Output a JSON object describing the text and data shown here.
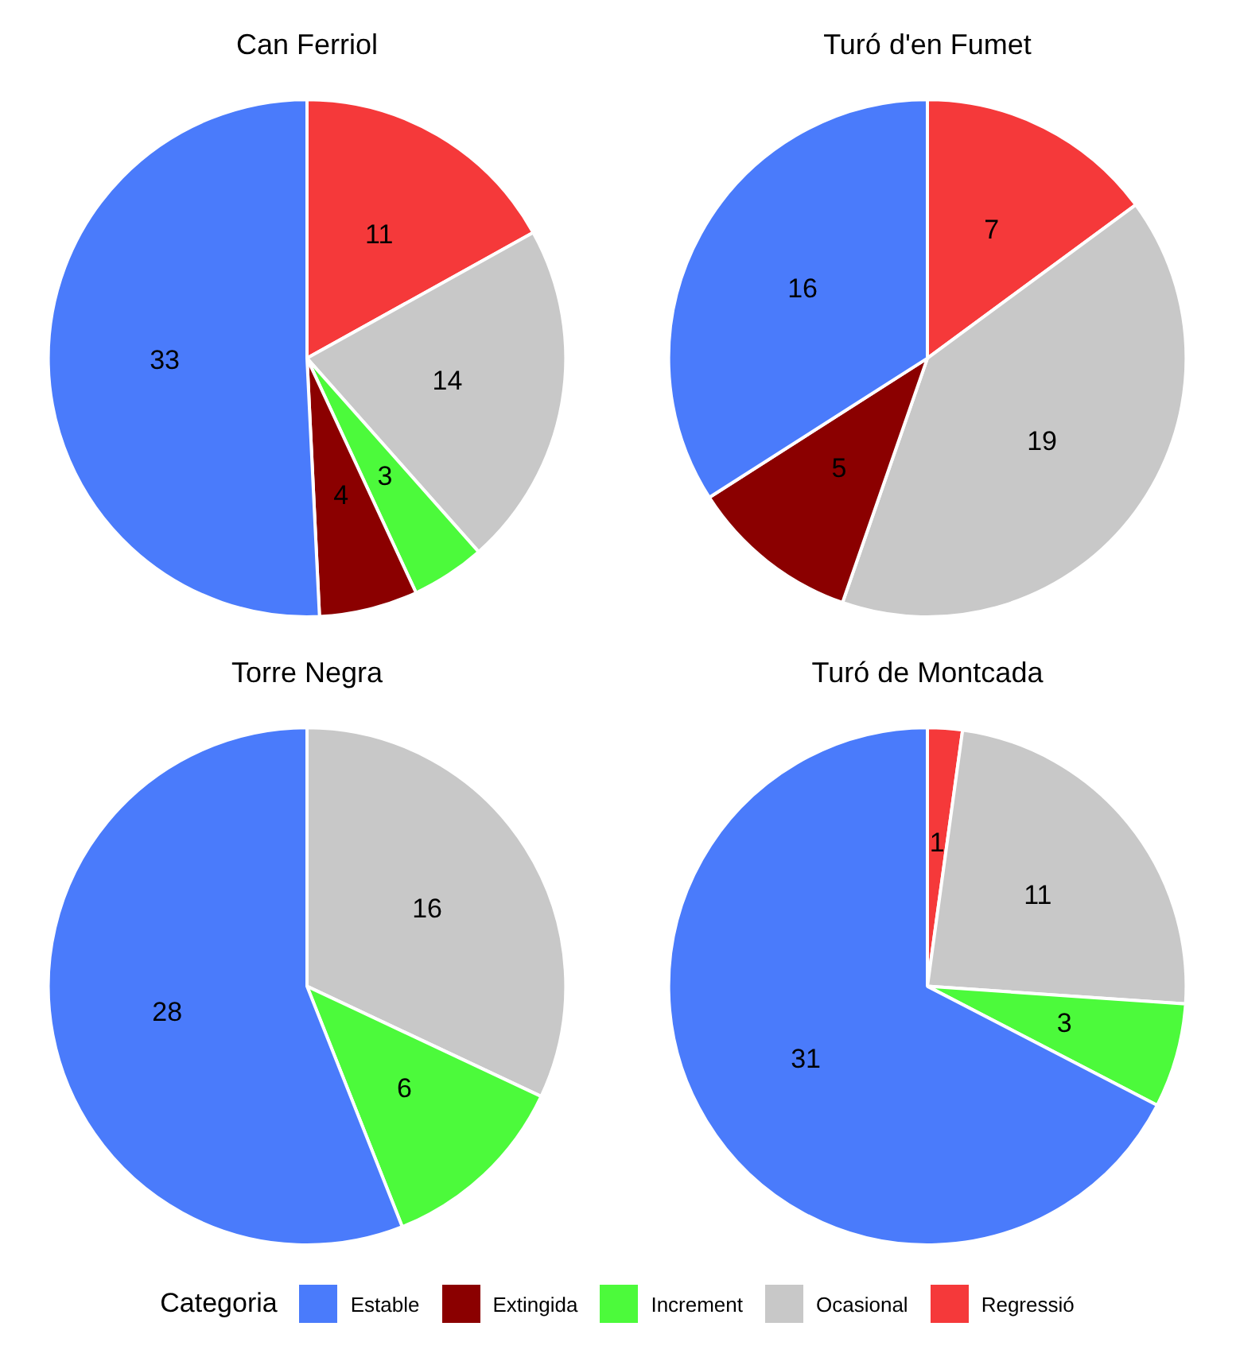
{
  "chart_data": [
    {
      "type": "pie",
      "title": "Can Ferriol",
      "categories": [
        "Regressió",
        "Ocasional",
        "Increment",
        "Extingida",
        "Estable"
      ],
      "values": [
        11,
        14,
        3,
        4,
        33
      ],
      "colors": [
        "#f5393a",
        "#c8c8c8",
        "#4cfa3b",
        "#8b0000",
        "#4a7bfb"
      ],
      "data_labels": true,
      "legend": "bottom",
      "legend_title": "Categoria"
    },
    {
      "type": "pie",
      "title": "Turó d'en Fumet",
      "categories": [
        null,
        null,
        null,
        null
      ],
      "values": [
        7,
        19,
        5,
        16
      ],
      "colors": [
        "#f5393a",
        "#c8c8c8",
        "#8b0000",
        "#4a7bfb"
      ],
      "data_labels": true
    },
    {
      "type": "pie",
      "title": "Torre Negra",
      "categories": [
        null,
        null,
        null
      ],
      "values": [
        16,
        6,
        28
      ],
      "colors": [
        "#c8c8c8",
        "#4cfa3b",
        "#4a7bfb"
      ],
      "data_labels": true
    },
    {
      "type": "pie",
      "title": "Turó de Montcada",
      "categories": [
        null,
        null,
        null,
        null
      ],
      "values": [
        1,
        11,
        3,
        31
      ],
      "colors": [
        "#f5393a",
        "#c8c8c8",
        "#4cfa3b",
        "#4a7bfb"
      ],
      "data_labels": true
    }
  ]
}
